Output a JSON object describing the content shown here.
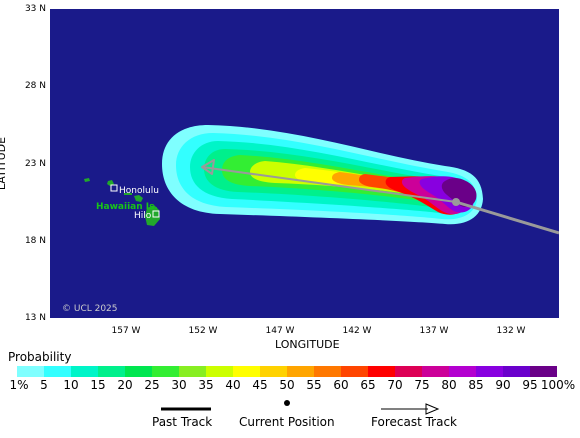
{
  "map": {
    "lat_labels": [
      "33 N",
      "28 N",
      "23 N",
      "18 N",
      "13 N"
    ],
    "lon_labels": [
      "157 W",
      "152 W",
      "147 W",
      "142 W",
      "137 W",
      "132 W"
    ],
    "x_axis_title": "LONGITUDE",
    "y_axis_title": "LATITUDE",
    "copyright": "© UCL 2025",
    "places": {
      "honolulu": "Honolulu",
      "islands": "Hawaiian Is.",
      "hilo": "Hilo"
    },
    "colors": {
      "ocean": "#1a1a8a",
      "land": "#22a82c",
      "track": "#9a9a9a",
      "island_text": "#18c418"
    }
  },
  "legend": {
    "title": "Probability",
    "labels": [
      "1%",
      "5",
      "10",
      "15",
      "20",
      "25",
      "30",
      "35",
      "40",
      "45",
      "50",
      "55",
      "60",
      "65",
      "70",
      "75",
      "80",
      "85",
      "90",
      "95",
      "100%"
    ],
    "colors": [
      "#7fffff",
      "#33ffff",
      "#00f5c8",
      "#00f08c",
      "#00e650",
      "#33ee33",
      "#88ee22",
      "#ccff00",
      "#ffff00",
      "#ffd200",
      "#ffa500",
      "#ff7800",
      "#ff4500",
      "#ff0000",
      "#dd0055",
      "#cc0099",
      "#b400d0",
      "#8800e0",
      "#6a00cc",
      "#6a0088"
    ]
  },
  "key": {
    "past_track": "Past Track",
    "current_position": "Current Position",
    "forecast_track": "Forecast Track"
  }
}
